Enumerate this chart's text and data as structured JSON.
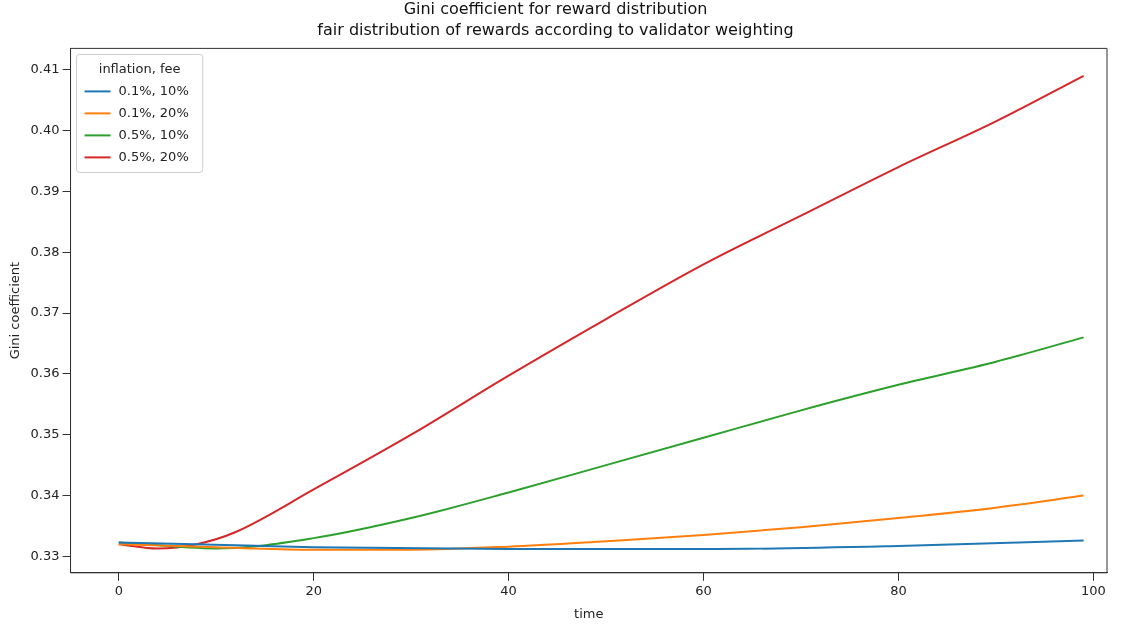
{
  "chart_data": {
    "type": "line",
    "title": "Gini coefficient for reward distribution",
    "subtitle": "fair distribution of rewards according to validator weighting",
    "xlabel": "time",
    "ylabel": "Gini coefficient",
    "legend_title": "inflation, fee",
    "legend": "top left",
    "grid": false,
    "marker": "none",
    "line_style": "solid",
    "xlim": [
      -4.95,
      101.4
    ],
    "xticks": [
      0,
      20,
      40,
      60,
      80,
      100
    ],
    "ylim": [
      0.3273,
      0.4135
    ],
    "yticks": [
      0.33,
      0.34,
      0.35,
      0.36,
      0.37,
      0.38,
      0.39,
      {
        "value": 0.4,
        "label": "0.40"
      },
      0.41
    ],
    "series": [
      {
        "name": "0.1%, 10%",
        "color": "#1f77b4",
        "x": [
          0,
          20,
          40,
          60,
          80,
          99
        ],
        "values": [
          0.3323,
          0.3315,
          0.3312,
          0.3312,
          0.3317,
          0.3326
        ]
      },
      {
        "name": "0.1%, 20%",
        "color": "#ff7f0e",
        "x": [
          0,
          10,
          20,
          30,
          40,
          50,
          60,
          70,
          80,
          90,
          99
        ],
        "values": [
          0.332,
          0.3315,
          0.3311,
          0.3311,
          0.3316,
          0.3325,
          0.3335,
          0.3348,
          0.3363,
          0.338,
          0.34
        ]
      },
      {
        "name": "0.5%, 10%",
        "color": "#2ca02c",
        "x": [
          0,
          10,
          20,
          30,
          40,
          50,
          60,
          70,
          80,
          90,
          99
        ],
        "values": [
          0.3323,
          0.3313,
          0.333,
          0.3363,
          0.3405,
          0.345,
          0.3495,
          0.354,
          0.3582,
          0.362,
          0.366
        ]
      },
      {
        "name": "0.5%, 20%",
        "color": "#d62728",
        "x": [
          0,
          4,
          8,
          12,
          20,
          30,
          40,
          50,
          60,
          70,
          80,
          90,
          99
        ],
        "values": [
          0.332,
          0.3313,
          0.332,
          0.334,
          0.341,
          0.35,
          0.3597,
          0.369,
          0.378,
          0.386,
          0.394,
          0.4015,
          0.409
        ]
      }
    ]
  }
}
